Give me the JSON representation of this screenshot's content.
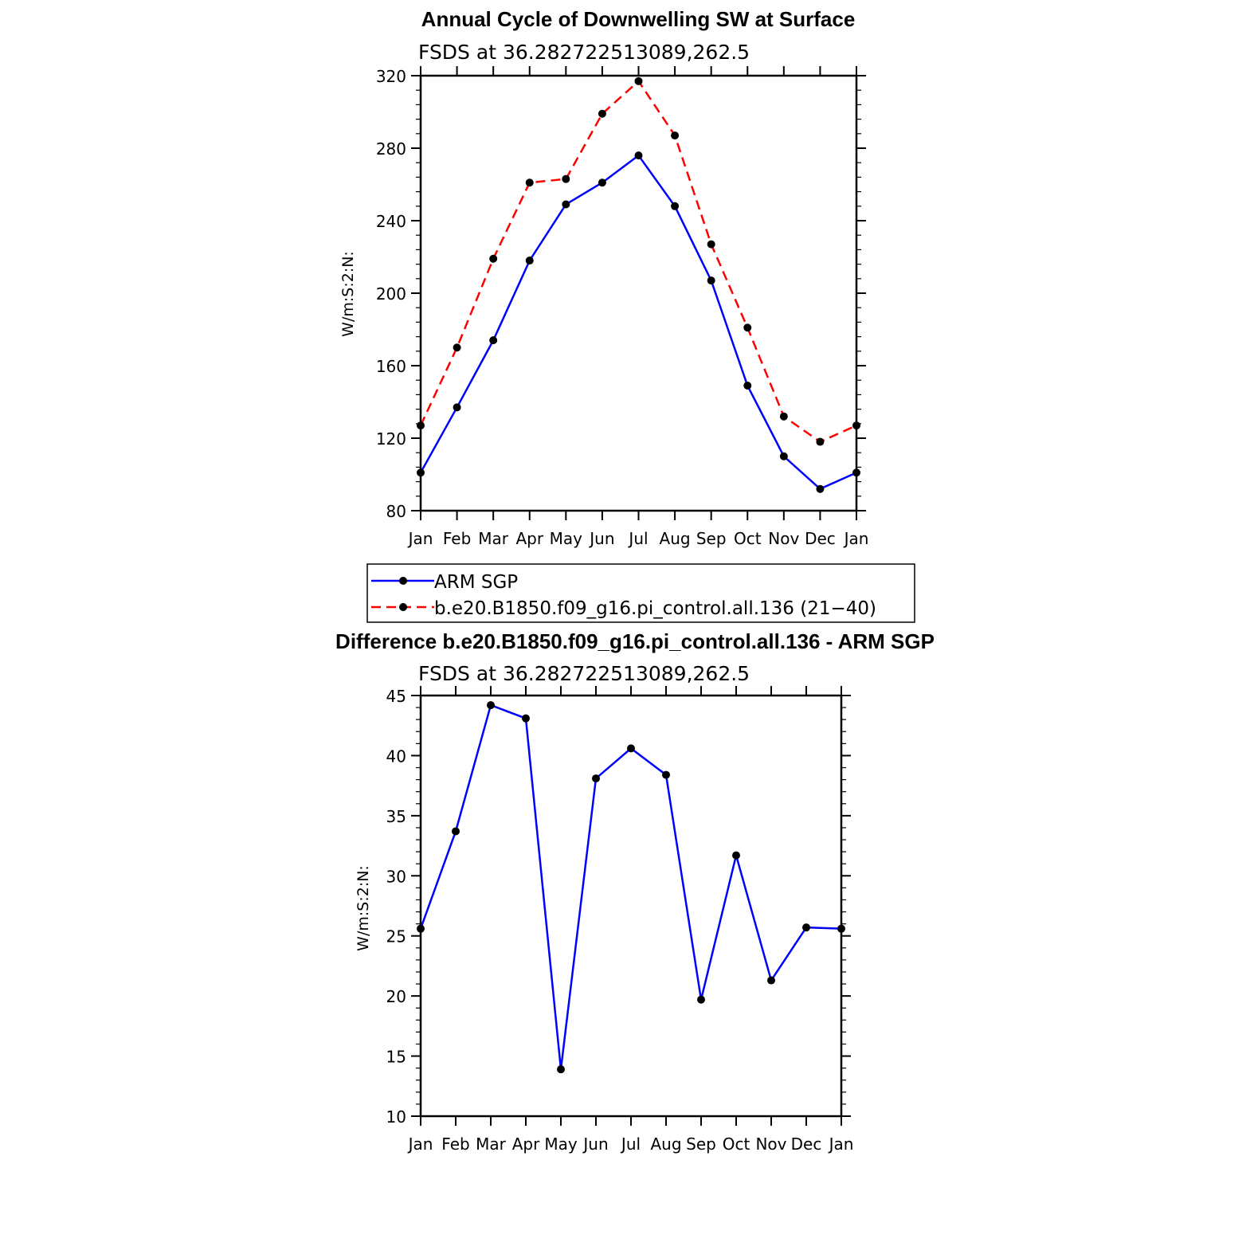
{
  "chart_data": [
    {
      "type": "line",
      "title": "Annual Cycle of Downwelling SW at Surface",
      "subtitle": "FSDS at 36.282722513089,262.5",
      "ylabel": "W/m:S:2:N:",
      "xlabel": "",
      "categories": [
        "Jan",
        "Feb",
        "Mar",
        "Apr",
        "May",
        "Jun",
        "Jul",
        "Aug",
        "Sep",
        "Oct",
        "Nov",
        "Dec",
        "Jan"
      ],
      "ylim": [
        80,
        320
      ],
      "yticks": [
        80,
        120,
        160,
        200,
        240,
        280,
        320
      ],
      "yticklabels": [
        "80",
        "120",
        "160",
        "200",
        "240",
        "280",
        "320"
      ],
      "series": [
        {
          "name": "ARM SGP",
          "color": "#0000ff",
          "dash": "solid",
          "values": [
            101,
            137,
            174,
            218,
            249,
            261,
            276,
            248,
            207,
            149,
            110,
            92,
            101
          ]
        },
        {
          "name": "b.e20.B1850.f09_g16.pi_control.all.136 (21−40)",
          "color": "#ff0000",
          "dash": "dashed",
          "values": [
            127,
            170,
            219,
            261,
            263,
            299,
            317,
            287,
            227,
            181,
            132,
            118,
            127
          ]
        }
      ]
    },
    {
      "type": "line",
      "title": "Difference b.e20.B1850.f09_g16.pi_control.all.136 - ARM SGP",
      "subtitle": "FSDS at 36.282722513089,262.5",
      "ylabel": "W/m:S:2:N:",
      "xlabel": "",
      "categories": [
        "Jan",
        "Feb",
        "Mar",
        "Apr",
        "May",
        "Jun",
        "Jul",
        "Aug",
        "Sep",
        "Oct",
        "Nov",
        "Dec",
        "Jan"
      ],
      "ylim": [
        10,
        45
      ],
      "yticks": [
        10,
        15,
        20,
        25,
        30,
        35,
        40,
        45
      ],
      "yticklabels": [
        "10",
        "15",
        "20",
        "25",
        "30",
        "35",
        "40",
        "45"
      ],
      "series": [
        {
          "name": "Difference",
          "color": "#0000ff",
          "dash": "solid",
          "values": [
            25.6,
            33.7,
            44.2,
            43.1,
            13.9,
            38.1,
            40.6,
            38.4,
            19.7,
            31.7,
            21.3,
            25.7,
            25.6
          ]
        }
      ]
    }
  ],
  "legend": {
    "items": [
      {
        "label": "ARM SGP"
      },
      {
        "label": "b.e20.B1850.f09_g16.pi_control.all.136 (21−40)"
      }
    ]
  }
}
